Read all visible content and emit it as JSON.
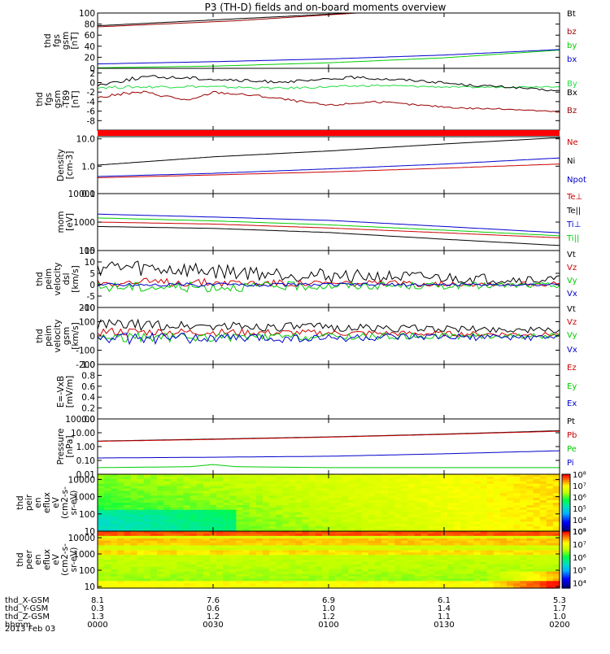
{
  "title": "P3 (TH-D) fields and on-board moments overview",
  "colors": {
    "black": "#000000",
    "red": "#cc0000",
    "darkred": "#990000",
    "green": "#00cc00",
    "brightgreen": "#22dd44",
    "blue": "#0000cc"
  },
  "chart_data": [
    {
      "type": "line",
      "ylabel": [
        "thd",
        "fgs",
        "gsm",
        "[nT]"
      ],
      "ylim": [
        0,
        100
      ],
      "yticks": [
        "0",
        "20",
        "40",
        "60",
        "80",
        "100"
      ],
      "series": [
        {
          "name": "Bt",
          "color": "#000000",
          "x": [
            0,
            0.6
          ],
          "y": [
            77,
            102
          ]
        },
        {
          "name": "bz",
          "color": "#990000",
          "x": [
            0,
            0.3,
            0.6
          ],
          "y": [
            75,
            86,
            102
          ]
        },
        {
          "name": "by",
          "color": "#00cc00",
          "x": [
            0,
            0.25,
            0.5,
            0.75,
            1.0
          ],
          "y": [
            1,
            4,
            10,
            19,
            33
          ]
        },
        {
          "name": "bx",
          "color": "#0000cc",
          "x": [
            0,
            0.25,
            0.5,
            0.75,
            1.0
          ],
          "y": [
            8,
            12,
            17,
            24,
            34
          ]
        }
      ]
    },
    {
      "type": "line",
      "ylabel": [
        "thd",
        "fgs",
        "gsm",
        "-T89",
        "[nT]"
      ],
      "ylim": [
        -10,
        3
      ],
      "yticks": [
        "-8",
        "-6",
        "-4",
        "-2",
        "0",
        "2"
      ],
      "series": [
        {
          "name": "By",
          "color": "#22dd44",
          "x": [
            0,
            0.2,
            0.4,
            0.6,
            0.8,
            1.0
          ],
          "y": [
            -1,
            -0.8,
            -1.2,
            -0.6,
            -1.0,
            -0.8
          ]
        },
        {
          "name": "Bx",
          "color": "#000000",
          "x": [
            0,
            0.1,
            0.2,
            0.35,
            0.45,
            0.55,
            0.7,
            0.8,
            0.9,
            1.0
          ],
          "y": [
            -0.5,
            1.2,
            1.0,
            0.2,
            0.3,
            1.1,
            0.4,
            -0.5,
            -1.0,
            -1.8
          ]
        },
        {
          "name": "Bz",
          "color": "#990000",
          "x": [
            0,
            0.05,
            0.1,
            0.2,
            0.25,
            0.35,
            0.5,
            0.6,
            0.7,
            0.8,
            0.9,
            1.0
          ],
          "y": [
            -3.2,
            -2.4,
            -2.0,
            -3.8,
            -2.0,
            -2.8,
            -4.8,
            -4.0,
            -4.8,
            -5.4,
            -5.6,
            -6.2
          ]
        }
      ]
    },
    {
      "type": "line",
      "ylabel": [
        "Density",
        "[cm-3]"
      ],
      "yscale": "log",
      "ylim": [
        0.1,
        12
      ],
      "yticks": [
        "0.1",
        "1.0",
        "10.0"
      ],
      "series": [
        {
          "name": "Ne",
          "color": "#cc0000",
          "x": [
            0,
            0.25,
            0.5,
            0.75,
            1.0
          ],
          "y": [
            0.38,
            0.48,
            0.62,
            0.85,
            1.2
          ]
        },
        {
          "name": "Ni",
          "color": "#000000",
          "x": [
            0,
            0.25,
            0.5,
            0.75,
            1.0
          ],
          "y": [
            1.1,
            2.2,
            3.6,
            6.5,
            11
          ]
        },
        {
          "name": "Npot",
          "color": "#0000cc",
          "x": [
            0,
            0.25,
            0.5,
            0.75,
            1.0
          ],
          "y": [
            0.42,
            0.55,
            0.8,
            1.2,
            2.0
          ]
        }
      ]
    },
    {
      "type": "line",
      "ylabel": [
        "mom",
        "[eV]"
      ],
      "yscale": "log",
      "ylim": [
        100,
        10000
      ],
      "yticks": [
        "100",
        "1000",
        "10000"
      ],
      "series": [
        {
          "name": "Te⊥",
          "color": "#cc0000",
          "x": [
            0,
            0.25,
            0.5,
            0.75,
            1.0
          ],
          "y": [
            1000,
            850,
            620,
            420,
            280
          ]
        },
        {
          "name": "Te||",
          "color": "#000000",
          "x": [
            0,
            0.25,
            0.5,
            0.75,
            1.0
          ],
          "y": [
            700,
            600,
            430,
            250,
            150
          ]
        },
        {
          "name": "Ti⊥",
          "color": "#0000cc",
          "x": [
            0,
            0.25,
            0.5,
            0.75,
            1.0
          ],
          "y": [
            1900,
            1500,
            1150,
            700,
            420
          ]
        },
        {
          "name": "Ti||",
          "color": "#00cc00",
          "x": [
            0,
            0.25,
            0.5,
            0.75,
            1.0
          ],
          "y": [
            1400,
            1100,
            800,
            520,
            330
          ]
        }
      ]
    },
    {
      "type": "line",
      "ylabel": [
        "thd",
        "peim",
        "velocity",
        "dsl",
        "[km/s]"
      ],
      "ylim": [
        -10,
        15
      ],
      "yticks": [
        "-10",
        "-5",
        "0",
        "5",
        "10",
        "15"
      ],
      "series": [
        {
          "name": "Vt",
          "color": "#000000",
          "x": [
            0,
            0.25,
            0.5,
            0.75,
            1.0
          ],
          "y": [
            8,
            6,
            4,
            3,
            2
          ]
        },
        {
          "name": "Vz",
          "color": "#cc0000",
          "x": [
            0,
            0.25,
            0.5,
            0.75,
            1.0
          ],
          "y": [
            1,
            1,
            0.5,
            0.5,
            0.3
          ]
        },
        {
          "name": "Vy",
          "color": "#00cc00",
          "x": [
            0,
            0.25,
            0.5,
            0.75,
            1.0
          ],
          "y": [
            -1,
            -1,
            -0.5,
            -0.5,
            -0.2
          ]
        },
        {
          "name": "Vx",
          "color": "#0000cc",
          "x": [
            0,
            0.25,
            0.5,
            0.75,
            1.0
          ],
          "y": [
            0,
            0,
            0,
            0,
            0
          ]
        }
      ]
    },
    {
      "type": "line",
      "ylabel": [
        "thd",
        "peim",
        "velocity",
        "gsm",
        "[km/s]"
      ],
      "ylim": [
        -200,
        200
      ],
      "yticks": [
        "-200",
        "-100",
        "0",
        "100",
        "200"
      ],
      "series": [
        {
          "name": "Vt",
          "color": "#000000",
          "x": [
            0,
            0.25,
            0.5,
            0.75,
            1.0
          ],
          "y": [
            80,
            70,
            60,
            50,
            40
          ]
        },
        {
          "name": "Vz",
          "color": "#cc0000",
          "x": [
            0,
            0.25,
            0.5,
            0.75,
            1.0
          ],
          "y": [
            30,
            25,
            20,
            15,
            10
          ]
        },
        {
          "name": "Vy",
          "color": "#00cc00",
          "x": [
            0,
            0.25,
            0.5,
            0.75,
            1.0
          ],
          "y": [
            -10,
            -10,
            -5,
            0,
            0
          ]
        },
        {
          "name": "Vx",
          "color": "#0000cc",
          "x": [
            0,
            0.25,
            0.5,
            0.75,
            1.0
          ],
          "y": [
            -20,
            -15,
            -15,
            -10,
            -10
          ]
        }
      ]
    },
    {
      "type": "line",
      "ylabel": [
        "E=-VxB",
        "[mV/m]"
      ],
      "ylim": [
        0,
        1
      ],
      "yticks": [
        "0.0",
        "0.2",
        "0.4",
        "0.6",
        "0.8",
        "1.0"
      ],
      "series": [
        {
          "name": "Ez",
          "color": "#cc0000",
          "x": [],
          "y": []
        },
        {
          "name": "Ey",
          "color": "#00cc00",
          "x": [],
          "y": []
        },
        {
          "name": "Ex",
          "color": "#0000cc",
          "x": [],
          "y": []
        }
      ]
    },
    {
      "type": "line",
      "ylabel": [
        "Pressure",
        "[nPa]"
      ],
      "yscale": "log",
      "ylim": [
        0.01,
        100
      ],
      "yticks": [
        "0.01",
        "0.10",
        "1.00",
        "10.00",
        "100.00"
      ],
      "series": [
        {
          "name": "Pt",
          "color": "#000000",
          "x": [
            0,
            0.25,
            0.5,
            0.75,
            1.0
          ],
          "y": [
            2.5,
            3.5,
            5,
            8,
            14
          ]
        },
        {
          "name": "Pb",
          "color": "#cc0000",
          "x": [
            0,
            0.25,
            0.5,
            0.75,
            1.0
          ],
          "y": [
            2.4,
            3.3,
            4.8,
            7.6,
            13
          ]
        },
        {
          "name": "Pe",
          "color": "#00cc00",
          "x": [
            0,
            0.2,
            0.25,
            0.3,
            0.5,
            0.75,
            1.0
          ],
          "y": [
            0.03,
            0.035,
            0.05,
            0.035,
            0.03,
            0.03,
            0.03
          ]
        },
        {
          "name": "Pi",
          "color": "#0000cc",
          "x": [
            0,
            0.25,
            0.5,
            0.75,
            1.0
          ],
          "y": [
            0.15,
            0.17,
            0.2,
            0.3,
            0.5
          ]
        }
      ]
    },
    {
      "type": "heatmap",
      "ylabel": [
        "thd",
        "peir",
        "en",
        "eflux",
        "eV",
        "(cm2-s-",
        "sr-eV)"
      ],
      "yscale": "log",
      "ylim": [
        10,
        20000
      ],
      "yticks": [
        "10",
        "100",
        "1000",
        "10000"
      ],
      "colorbar": {
        "labels": [
          "10³",
          "10⁴",
          "10⁵",
          "10⁶",
          "10⁷",
          "10⁸"
        ],
        "range": [
          3,
          8
        ]
      }
    },
    {
      "type": "heatmap",
      "ylabel": [
        "thd",
        "peer",
        "en",
        "eflux",
        "eV",
        "(cm2-s-",
        "sr-eV)"
      ],
      "yscale": "log",
      "ylim": [
        8,
        25000
      ],
      "yticks": [
        "10",
        "100",
        "1000",
        "10000"
      ],
      "colorbar": {
        "labels": [
          "10⁴",
          "10⁵",
          "10⁶",
          "10⁷",
          "10⁸"
        ],
        "range": [
          3.6,
          8
        ]
      }
    }
  ],
  "x_axis": {
    "rows": [
      {
        "label": "thd_X-GSM",
        "values": [
          "8.1",
          "7.6",
          "6.9",
          "6.1",
          "5.3"
        ]
      },
      {
        "label": "thd_Y-GSM",
        "values": [
          "0.3",
          "0.6",
          "1.0",
          "1.4",
          "1.7"
        ]
      },
      {
        "label": "thd_Z-GSM",
        "values": [
          "1.3",
          "1.2",
          "1.2",
          "1.1",
          "1.0"
        ]
      },
      {
        "label": "hhmm",
        "values": [
          "0000",
          "0030",
          "0100",
          "0130",
          "0200"
        ]
      }
    ],
    "date": "2013 Feb 03"
  }
}
